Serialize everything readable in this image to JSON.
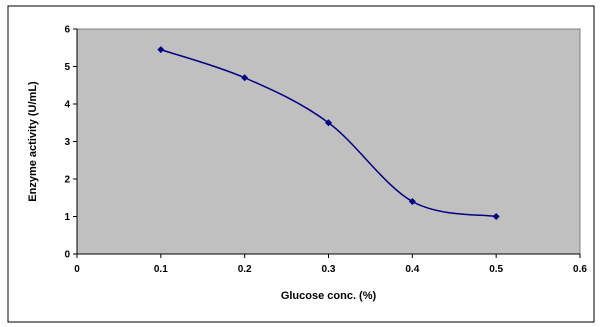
{
  "chart_data": {
    "type": "line",
    "title": "",
    "xlabel": "Glucose conc. (%)",
    "ylabel": "Enzyme activity (U/mL)",
    "xlim": [
      0,
      0.6
    ],
    "ylim": [
      0,
      6
    ],
    "x_ticks": [
      "0",
      "0.1",
      "0.2",
      "0.3",
      "0.4",
      "0.5",
      "0.6"
    ],
    "y_ticks": [
      "0",
      "1",
      "2",
      "3",
      "4",
      "5",
      "6"
    ],
    "grid": false,
    "legend": "none",
    "plot_background": "#c0c0c0",
    "series": [
      {
        "color": "#000080",
        "x": [
          0.1,
          0.2,
          0.3,
          0.4,
          0.5
        ],
        "y": [
          5.45,
          4.7,
          3.5,
          1.4,
          1.0
        ]
      }
    ]
  }
}
